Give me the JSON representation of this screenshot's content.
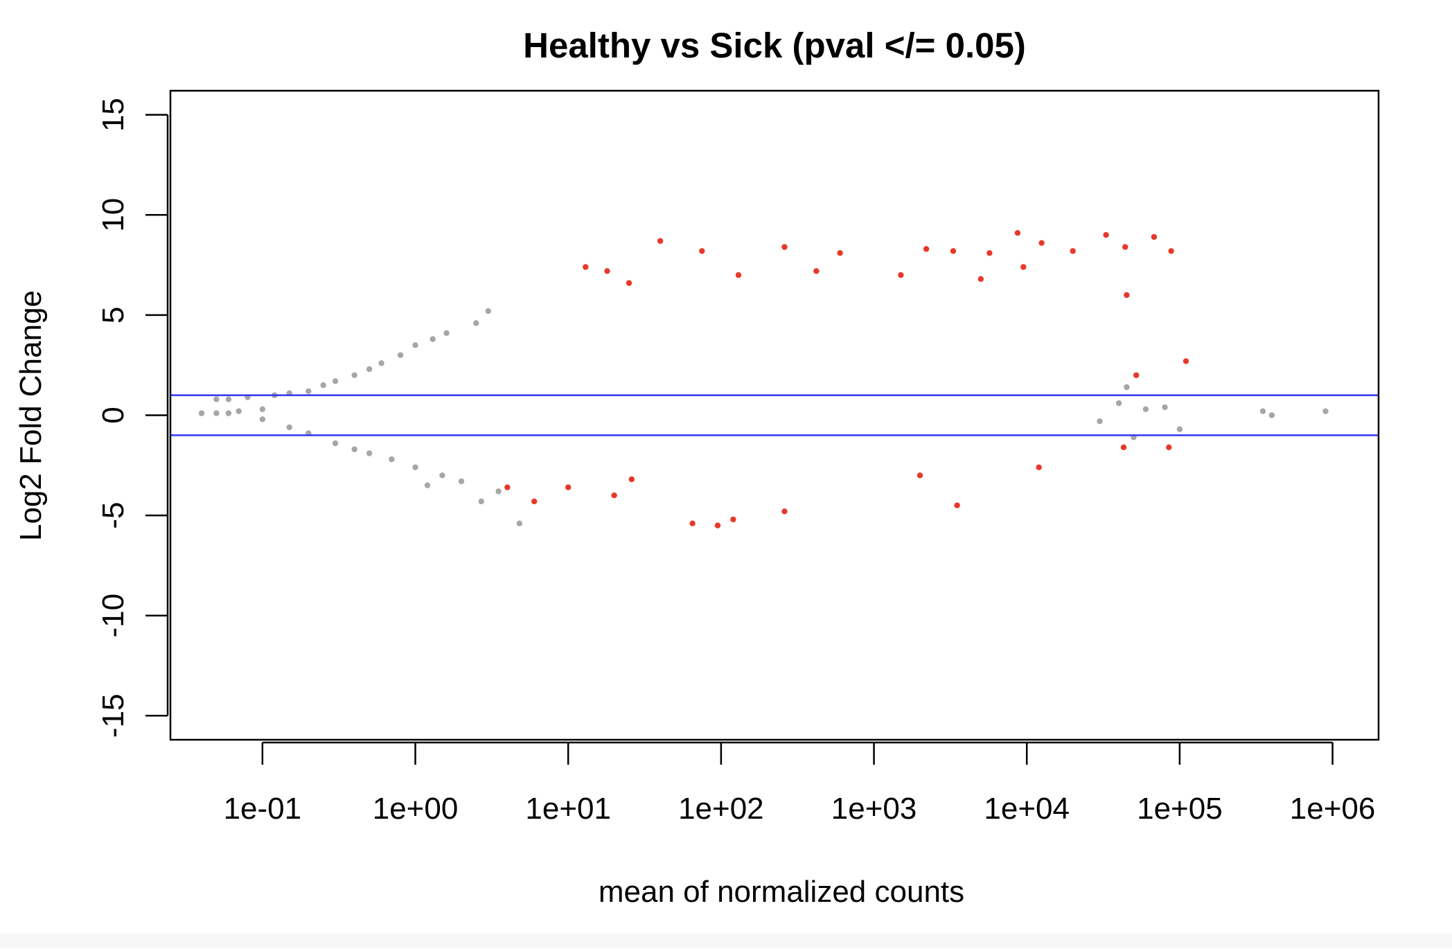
{
  "chart_data": {
    "type": "scatter",
    "title": "Healthy vs Sick  (pval </= 0.05)",
    "xlabel": "mean of normalized counts",
    "ylabel": "Log2 Fold Change",
    "x_scale": "log10",
    "xlim": [
      0.025,
      2000000
    ],
    "ylim": [
      -16.2,
      16.2
    ],
    "x_ticks": [
      0.1,
      1,
      10,
      100,
      1000,
      10000,
      100000,
      1000000
    ],
    "x_tick_labels": [
      "1e-01",
      "1e+00",
      "1e+01",
      "1e+02",
      "1e+03",
      "1e+04",
      "1e+05",
      "1e+06"
    ],
    "y_ticks": [
      -15,
      -10,
      -5,
      0,
      5,
      10,
      15
    ],
    "y_tick_labels": [
      "-15",
      "-10",
      "-5",
      "0",
      "5",
      "10",
      "15"
    ],
    "hlines": [
      1,
      -1
    ],
    "hline_color": "#3333ff",
    "grid": false,
    "legend": "none",
    "series": [
      {
        "color": "#a6a6a6",
        "description_level": "not significant",
        "points": [
          [
            0.04,
            0.1
          ],
          [
            0.05,
            0.1
          ],
          [
            0.06,
            0.1
          ],
          [
            0.07,
            0.2
          ],
          [
            0.05,
            0.8
          ],
          [
            0.06,
            0.8
          ],
          [
            0.08,
            0.9
          ],
          [
            0.1,
            0.3
          ],
          [
            0.12,
            1.0
          ],
          [
            0.15,
            1.1
          ],
          [
            0.2,
            1.2
          ],
          [
            0.25,
            1.5
          ],
          [
            0.3,
            1.7
          ],
          [
            0.4,
            2.0
          ],
          [
            0.5,
            2.3
          ],
          [
            0.6,
            2.6
          ],
          [
            0.8,
            3.0
          ],
          [
            1.0,
            3.5
          ],
          [
            1.3,
            3.8
          ],
          [
            1.6,
            4.1
          ],
          [
            0.1,
            -0.2
          ],
          [
            0.15,
            -0.6
          ],
          [
            0.2,
            -0.9
          ],
          [
            0.3,
            -1.4
          ],
          [
            0.4,
            -1.7
          ],
          [
            0.5,
            -1.9
          ],
          [
            0.7,
            -2.2
          ],
          [
            1.0,
            -2.6
          ],
          [
            1.5,
            -3.0
          ],
          [
            2.0,
            -3.3
          ],
          [
            1.2,
            -3.5
          ],
          [
            3.0,
            5.2
          ],
          [
            2.5,
            4.6
          ],
          [
            2.7,
            -4.3
          ],
          [
            4.8,
            -5.4
          ],
          [
            3.5,
            -3.8
          ],
          [
            30000,
            -0.3
          ],
          [
            40000,
            0.6
          ],
          [
            60000,
            0.3
          ],
          [
            80000,
            0.4
          ],
          [
            100000,
            -0.7
          ],
          [
            350000,
            0.2
          ],
          [
            400000,
            0.0
          ],
          [
            900000,
            0.2
          ],
          [
            50000,
            -1.1
          ],
          [
            45000,
            1.4
          ]
        ]
      },
      {
        "color": "#e8382a",
        "description_level": "significant",
        "points": [
          [
            40,
            8.7
          ],
          [
            75,
            8.2
          ],
          [
            260,
            8.4
          ],
          [
            600,
            8.1
          ],
          [
            2200,
            8.3
          ],
          [
            3300,
            8.2
          ],
          [
            5700,
            8.1
          ],
          [
            8700,
            9.1
          ],
          [
            12500,
            8.6
          ],
          [
            33000,
            9.0
          ],
          [
            44000,
            8.4
          ],
          [
            68000,
            8.9
          ],
          [
            88000,
            8.2
          ],
          [
            13,
            7.4
          ],
          [
            18,
            7.2
          ],
          [
            25,
            6.6
          ],
          [
            130,
            7.0
          ],
          [
            420,
            7.2
          ],
          [
            1500,
            7.0
          ],
          [
            5000,
            6.8
          ],
          [
            9500,
            7.4
          ],
          [
            20000,
            8.2
          ],
          [
            45000,
            6.0
          ],
          [
            110000,
            2.7
          ],
          [
            52000,
            2.0
          ],
          [
            65,
            -5.4
          ],
          [
            95,
            -5.5
          ],
          [
            120,
            -5.2
          ],
          [
            260,
            -4.8
          ],
          [
            3500,
            -4.5
          ],
          [
            6,
            -4.3
          ],
          [
            20,
            -4.0
          ],
          [
            10,
            -3.6
          ],
          [
            4,
            -3.6
          ],
          [
            26,
            -3.2
          ],
          [
            12000,
            -2.6
          ],
          [
            85000,
            -1.6
          ],
          [
            43000,
            -1.6
          ],
          [
            2000,
            -3.0
          ]
        ]
      }
    ]
  }
}
